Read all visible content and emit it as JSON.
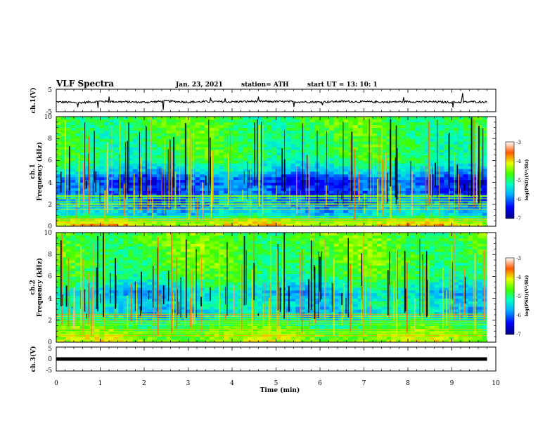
{
  "header": {
    "title": "VLF Spectra",
    "date": "Jan. 23, 2021",
    "station": "station= ATH",
    "start": "start UT = 13: 10: 1"
  },
  "chart_data": [
    {
      "type": "line",
      "name": "ch1-waveform",
      "ylabel": "ch.1(V)",
      "ylim": [
        -5,
        5
      ],
      "yticks": [
        -5,
        5
      ],
      "xlim": [
        0,
        10
      ],
      "series": [
        {
          "x": [
            0,
            0.5,
            1,
            1.5,
            2,
            2.5,
            3,
            3.5,
            4,
            4.5,
            5,
            5.5,
            6,
            6.5,
            7,
            7.5,
            8,
            8.5,
            9,
            9.5,
            9.8
          ],
          "y": [
            -0.6,
            -1.0,
            -0.4,
            -0.6,
            -0.8,
            -0.3,
            -0.7,
            -0.5,
            -0.6,
            -0.4,
            -0.5,
            -0.6,
            -0.7,
            -0.4,
            -0.6,
            -0.7,
            -0.5,
            -0.6,
            -0.8,
            -0.6,
            -0.7
          ]
        }
      ]
    },
    {
      "type": "heatmap",
      "name": "ch1-spectrogram",
      "ylabel": "ch.1",
      "ylabel2": "Frequency (kHz)",
      "ylim": [
        0,
        10
      ],
      "yticks": [
        0,
        2,
        4,
        6,
        8,
        10
      ],
      "xlim": [
        0,
        10
      ],
      "colorbar": {
        "label": "log(PSD)(V²/Hz)",
        "range": [
          -7,
          -3
        ],
        "ticks": [
          -3,
          -4,
          -5,
          -6,
          -7
        ]
      },
      "profile_khz": [
        0,
        0.5,
        1,
        1.5,
        2,
        2.5,
        3,
        3.5,
        4,
        4.5,
        5,
        5.5,
        6,
        7,
        8,
        9,
        10
      ],
      "profile_log_psd": [
        -4.0,
        -4.4,
        -5.4,
        -5.6,
        -5.9,
        -5.8,
        -6.2,
        -6.0,
        -6.2,
        -6.0,
        -5.5,
        -5.3,
        -5.0,
        -4.9,
        -4.9,
        -4.8,
        -4.8
      ]
    },
    {
      "type": "heatmap",
      "name": "ch2-spectrogram",
      "ylabel": "ch.2",
      "ylabel2": "Frequency (kHz)",
      "ylim": [
        0,
        10
      ],
      "yticks": [
        0,
        2,
        4,
        6,
        8,
        10
      ],
      "xlim": [
        0,
        10
      ],
      "colorbar": {
        "label": "log(PSD)(V²/Hz)",
        "range": [
          -7,
          -3
        ],
        "ticks": [
          -3,
          -4,
          -5,
          -6,
          -7
        ]
      },
      "profile_khz": [
        0,
        0.5,
        1,
        1.5,
        2,
        2.5,
        3,
        3.5,
        4,
        4.5,
        5,
        5.5,
        6,
        7,
        8,
        9,
        10
      ],
      "profile_log_psd": [
        -4.4,
        -4.4,
        -4.6,
        -4.8,
        -5.2,
        -5.6,
        -5.5,
        -5.3,
        -5.4,
        -5.6,
        -5.3,
        -5.1,
        -4.9,
        -4.8,
        -4.7,
        -4.7,
        -4.7
      ]
    },
    {
      "type": "line",
      "name": "ch3-waveform",
      "ylabel": "ch.3(V)",
      "ylim": [
        -5,
        5
      ],
      "yticks": [
        -5,
        0,
        5
      ],
      "xlim": [
        0,
        10
      ],
      "xlabel": "Time (min)",
      "xticks": [
        0,
        1,
        2,
        3,
        4,
        5,
        6,
        7,
        8,
        9,
        10
      ],
      "series": [
        {
          "x": [
            0,
            9.8
          ],
          "y": [
            0,
            0
          ]
        }
      ]
    }
  ]
}
